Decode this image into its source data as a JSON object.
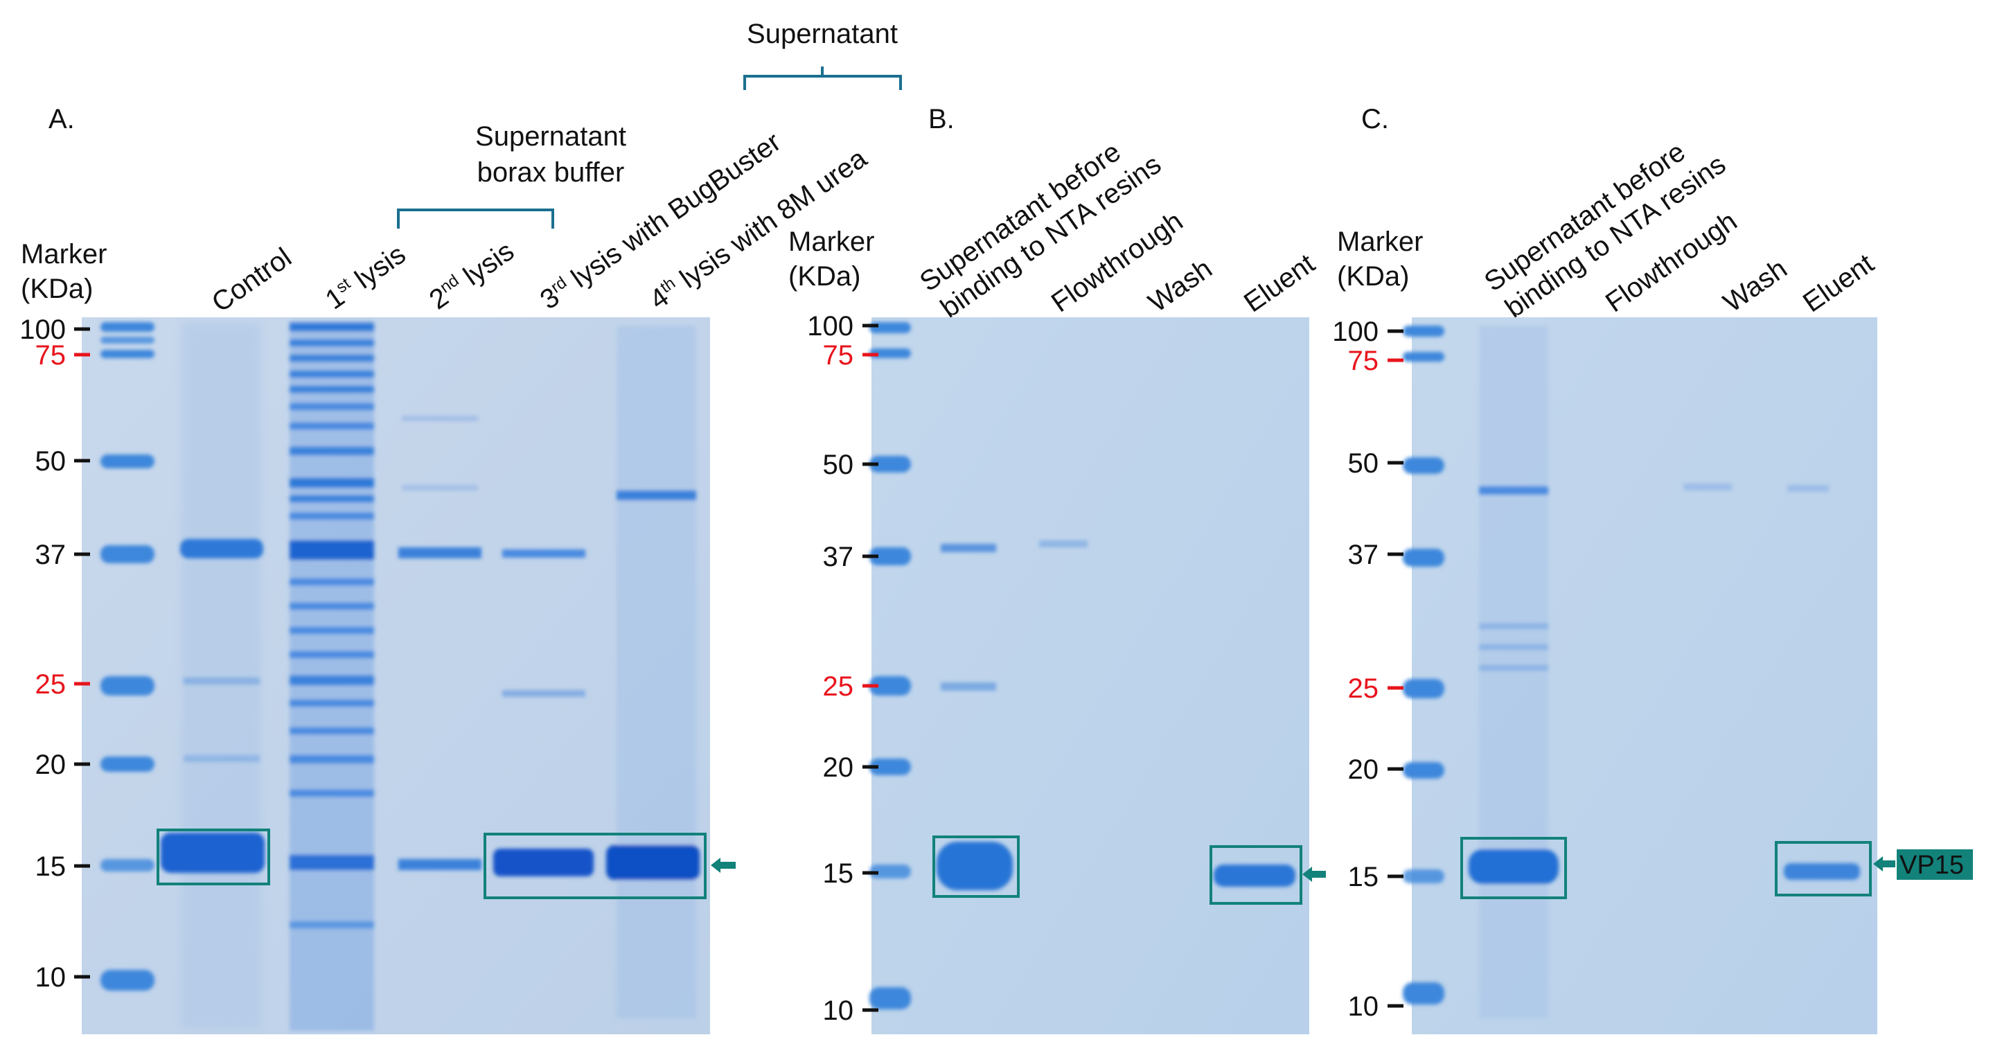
{
  "colors": {
    "gel_background": "#c5d6ea",
    "band": "#2a6fd6",
    "band_dark": "#1255c9",
    "highlight_box": "#12827a",
    "bracket": "#1b6f8f",
    "red_marker": "#e8141c",
    "vp15_tag": "#12827a"
  },
  "panels": [
    {
      "letter": "A.",
      "header_marker": "Marker",
      "header_unit": "(KDa)",
      "ladder": [
        "100",
        "75",
        "50",
        "37",
        "25",
        "20",
        "15",
        "10"
      ],
      "ladder_red": [
        "75",
        "25"
      ],
      "lanes": [
        {
          "text": "Control"
        },
        {
          "pre": "1",
          "sup": "st",
          "post": " lysis"
        },
        {
          "pre": "2",
          "sup": "nd",
          "post": " lysis"
        },
        {
          "pre": "3",
          "sup": "rd",
          "post": " lysis with BugBuster"
        },
        {
          "pre": "4",
          "sup": "th",
          "post": " lysis with 8M urea"
        }
      ],
      "bracket_label_1": "Supernatant",
      "bracket_label_2": "borax buffer",
      "top_bracket_label": "Supernatant"
    },
    {
      "letter": "B.",
      "header_marker": "Marker",
      "header_unit": "(KDa)",
      "ladder": [
        "100",
        "75",
        "50",
        "37",
        "25",
        "20",
        "15",
        "10"
      ],
      "ladder_red": [
        "75",
        "25"
      ],
      "lanes": [
        {
          "line1": "Supernatant before",
          "line2": "binding to NTA resins"
        },
        {
          "text": "Flowthrough"
        },
        {
          "text": "Wash"
        },
        {
          "text": "Eluent"
        }
      ]
    },
    {
      "letter": "C.",
      "header_marker": "Marker",
      "header_unit": "(KDa)",
      "ladder": [
        "100",
        "75",
        "50",
        "37",
        "25",
        "20",
        "15",
        "10"
      ],
      "ladder_red": [
        "75",
        "25"
      ],
      "lanes": [
        {
          "line1": "Supernatant before",
          "line2": "binding to NTA resins"
        },
        {
          "text": "Flowthrough"
        },
        {
          "text": "Wash"
        },
        {
          "text": "Eluent"
        }
      ],
      "tag": "VP15"
    }
  ]
}
